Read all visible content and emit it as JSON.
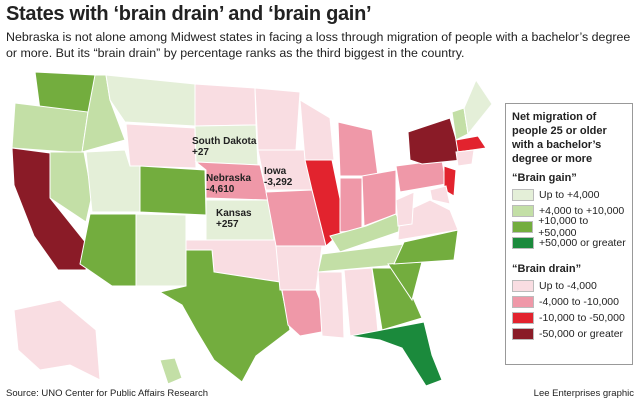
{
  "header": {
    "title": "States with ‘brain drain’ and ‘brain gain’",
    "subtitle": "Nebraska is not alone among Midwest states in facing a loss through migration of people with a bachelor’s degree or more. But its “brain drain” by percentage ranks as the third biggest in the country."
  },
  "map_labels": [
    {
      "name": "South Dakota",
      "value": "+27"
    },
    {
      "name": "Nebraska",
      "value": "-4,610"
    },
    {
      "name": "Iowa",
      "value": "-3,292"
    },
    {
      "name": "Kansas",
      "value": "+257"
    }
  ],
  "legend": {
    "title": "Net migration of people 25 or older with a bachelor’s degree or more",
    "groups": [
      {
        "heading": "“Brain gain”",
        "items": [
          {
            "label": "Up to +4,000",
            "color": "#e4efd8"
          },
          {
            "label": "+4,000 to +10,000",
            "color": "#c3dfa6"
          },
          {
            "label": "+10,000 to +50,000",
            "color": "#73ad3e"
          },
          {
            "label": "+50,000 or greater",
            "color": "#1b8a3c"
          }
        ]
      },
      {
        "heading": "“Brain drain”",
        "items": [
          {
            "label": "Up to -4,000",
            "color": "#f9dde2"
          },
          {
            "label": "-4,000 to -10,000",
            "color": "#ef98a8"
          },
          {
            "label": "-10,000 to -50,000",
            "color": "#e2232e"
          },
          {
            "label": "-50,000 or greater",
            "color": "#8a1b27"
          }
        ]
      }
    ]
  },
  "footer": {
    "source": "Source: UNO Center for Public Affairs Research",
    "credit": "Lee Enterprises graphic"
  }
}
